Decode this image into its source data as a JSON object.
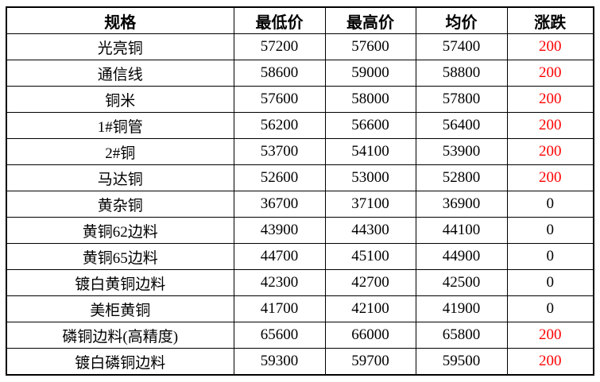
{
  "table": {
    "headers": [
      "规格",
      "最低价",
      "最高价",
      "均价",
      "涨跌"
    ],
    "colors": {
      "up_change": "#ff0000",
      "neutral_change": "#000000",
      "border": "#000000",
      "background": "#ffffff"
    },
    "rows": [
      {
        "spec": "光亮铜",
        "min": "57200",
        "max": "57600",
        "avg": "57400",
        "change": "200",
        "change_color": "red"
      },
      {
        "spec": "通信线",
        "min": "58600",
        "max": "59000",
        "avg": "58800",
        "change": "200",
        "change_color": "red"
      },
      {
        "spec": "铜米",
        "min": "57600",
        "max": "58000",
        "avg": "57800",
        "change": "200",
        "change_color": "red"
      },
      {
        "spec": "1#铜管",
        "min": "56200",
        "max": "56600",
        "avg": "56400",
        "change": "200",
        "change_color": "red"
      },
      {
        "spec": "2#铜",
        "min": "53700",
        "max": "54100",
        "avg": "53900",
        "change": "200",
        "change_color": "red"
      },
      {
        "spec": "马达铜",
        "min": "52600",
        "max": "53000",
        "avg": "52800",
        "change": "200",
        "change_color": "red"
      },
      {
        "spec": "黄杂铜",
        "min": "36700",
        "max": "37100",
        "avg": "36900",
        "change": "0",
        "change_color": "black"
      },
      {
        "spec": "黄铜62边料",
        "min": "43900",
        "max": "44300",
        "avg": "44100",
        "change": "0",
        "change_color": "black"
      },
      {
        "spec": "黄铜65边料",
        "min": "44700",
        "max": "45100",
        "avg": "44900",
        "change": "0",
        "change_color": "black"
      },
      {
        "spec": "镀白黄铜边料",
        "min": "42300",
        "max": "42700",
        "avg": "42500",
        "change": "0",
        "change_color": "black"
      },
      {
        "spec": "美柜黄铜",
        "min": "41700",
        "max": "42100",
        "avg": "41900",
        "change": "0",
        "change_color": "black"
      },
      {
        "spec": "磷铜边料(高精度)",
        "min": "65600",
        "max": "66000",
        "avg": "65800",
        "change": "200",
        "change_color": "red"
      },
      {
        "spec": "镀白磷铜边料",
        "min": "59300",
        "max": "59700",
        "avg": "59500",
        "change": "200",
        "change_color": "red"
      }
    ]
  }
}
